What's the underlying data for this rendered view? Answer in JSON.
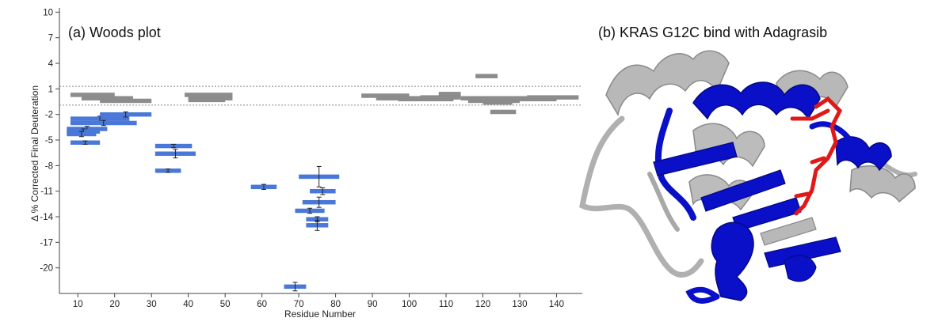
{
  "panels": {
    "a_title": "(a) Woods plot",
    "b_title": "(b) KRAS G12C bind with Adagrasib"
  },
  "colors": {
    "protected": "#4a78d8",
    "unchanged": "#8c8c8c",
    "threshold_line": "#888888",
    "cartoon_changed": "#0a10c8",
    "cartoon_unchanged": "#b0b0b0",
    "ligand": "#e01818"
  },
  "chart_data": {
    "type": "scatter",
    "subtype": "woods-plot",
    "title": "(a) Woods plot",
    "xlabel": "Residue Number",
    "ylabel": "Δ % Corrected Final Deuteration",
    "xlim": [
      5,
      147
    ],
    "ylim": [
      -23,
      10.5
    ],
    "xticks": [
      10,
      20,
      30,
      40,
      50,
      60,
      70,
      80,
      90,
      100,
      110,
      120,
      130,
      140
    ],
    "yticks": [
      10,
      7,
      4,
      1,
      -2,
      -5,
      -8,
      -11,
      -14,
      -17,
      -20
    ],
    "significance_thresholds": [
      1.3,
      -0.9
    ],
    "grid": false,
    "series": [
      {
        "peptides": [
          {
            "start": 8,
            "end": 24,
            "value": -2.5,
            "err": 0.3
          },
          {
            "start": 8,
            "end": 26,
            "value": -3.0,
            "err": 0.3
          },
          {
            "start": 16,
            "end": 30,
            "value": -2.0,
            "err": 0.3
          },
          {
            "start": 7,
            "end": 18,
            "value": -3.7,
            "err": 0.3
          },
          {
            "start": 7,
            "end": 16,
            "value": -4.0,
            "err": 0.3
          },
          {
            "start": 7,
            "end": 15,
            "value": -4.3,
            "err": 0.3
          },
          {
            "start": 8,
            "end": 16,
            "value": -5.3,
            "err": 0.2
          },
          {
            "start": 31,
            "end": 41,
            "value": -5.7,
            "err": 0.2
          },
          {
            "start": 31,
            "end": 42,
            "value": -6.6,
            "err": 0.5
          },
          {
            "start": 31,
            "end": 38,
            "value": -8.6,
            "err": 0.2
          },
          {
            "start": 57,
            "end": 64,
            "value": -10.5,
            "err": 0.3
          },
          {
            "start": 70,
            "end": 81,
            "value": -9.3,
            "err": 1.2
          },
          {
            "start": 73,
            "end": 80,
            "value": -11.0,
            "err": 0.4
          },
          {
            "start": 71,
            "end": 80,
            "value": -12.3,
            "err": 0.6
          },
          {
            "start": 69,
            "end": 77,
            "value": -13.3,
            "err": 0.3
          },
          {
            "start": 72,
            "end": 78,
            "value": -14.3,
            "err": 0.3
          },
          {
            "start": 72,
            "end": 78,
            "value": -15.0,
            "err": 0.6
          },
          {
            "start": 66,
            "end": 72,
            "value": -22.2,
            "err": 0.5
          }
        ]
      },
      {
        "peptides": [
          {
            "start": 8,
            "end": 20,
            "value": 0.3
          },
          {
            "start": 11,
            "end": 25,
            "value": -0.1
          },
          {
            "start": 16,
            "end": 30,
            "value": -0.4
          },
          {
            "start": 39,
            "end": 52,
            "value": 0.3
          },
          {
            "start": 40,
            "end": 52,
            "value": -0.1
          },
          {
            "start": 40,
            "end": 50,
            "value": -0.3
          },
          {
            "start": 87,
            "end": 100,
            "value": 0.2
          },
          {
            "start": 91,
            "end": 103,
            "value": -0.1
          },
          {
            "start": 97,
            "end": 112,
            "value": -0.2
          },
          {
            "start": 108,
            "end": 114,
            "value": 0.4
          },
          {
            "start": 103,
            "end": 114,
            "value": 0.0
          },
          {
            "start": 118,
            "end": 124,
            "value": 2.5
          },
          {
            "start": 114,
            "end": 135,
            "value": -0.1
          },
          {
            "start": 116,
            "end": 130,
            "value": -0.4
          },
          {
            "start": 120,
            "end": 128,
            "value": -0.6
          },
          {
            "start": 122,
            "end": 129,
            "value": -1.7
          },
          {
            "start": 132,
            "end": 146,
            "value": 0.0
          },
          {
            "start": 126,
            "end": 140,
            "value": -0.2
          }
        ]
      }
    ]
  }
}
